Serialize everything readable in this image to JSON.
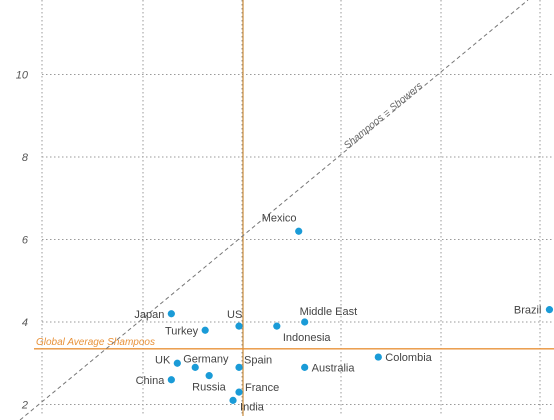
{
  "chart_data": {
    "type": "scatter",
    "title": "",
    "xlabel": "",
    "ylabel": "",
    "ylim": [
      2,
      12
    ],
    "xlim": [
      2,
      15
    ],
    "y_ticks": [
      2,
      4,
      6,
      8,
      10
    ],
    "grid": true,
    "point_color": "#1a9bd7",
    "reference_lines": [
      {
        "type": "diagonal",
        "label": "Shampoos = Showers",
        "style": "dashed",
        "color": "#777777"
      },
      {
        "type": "horizontal",
        "y": 3.35,
        "label": "Global Average Shampoos",
        "color": "#e8923a"
      },
      {
        "type": "vertical",
        "x": 7.05,
        "label": "",
        "color": "#c98a3a"
      }
    ],
    "points": [
      {
        "label": "Mexico",
        "x": 8.45,
        "y": 6.2
      },
      {
        "label": "Brazil",
        "x": 14.75,
        "y": 4.3
      },
      {
        "label": "Japan",
        "x": 5.25,
        "y": 4.2
      },
      {
        "label": "US",
        "x": 6.95,
        "y": 3.9
      },
      {
        "label": "Turkey",
        "x": 6.1,
        "y": 3.8
      },
      {
        "label": "Middle East",
        "x": 8.6,
        "y": 4.0
      },
      {
        "label": "Indonesia",
        "x": 7.9,
        "y": 3.9
      },
      {
        "label": "Colombia",
        "x": 10.45,
        "y": 3.15
      },
      {
        "label": "Australia",
        "x": 8.6,
        "y": 2.9
      },
      {
        "label": "UK",
        "x": 5.4,
        "y": 3.0
      },
      {
        "label": "Germany",
        "x": 5.85,
        "y": 2.9
      },
      {
        "label": "Spain",
        "x": 6.95,
        "y": 2.9
      },
      {
        "label": "China",
        "x": 5.25,
        "y": 2.6
      },
      {
        "label": "Russia",
        "x": 6.2,
        "y": 2.7
      },
      {
        "label": "France",
        "x": 6.95,
        "y": 2.3
      },
      {
        "label": "India",
        "x": 6.8,
        "y": 2.1
      }
    ]
  }
}
